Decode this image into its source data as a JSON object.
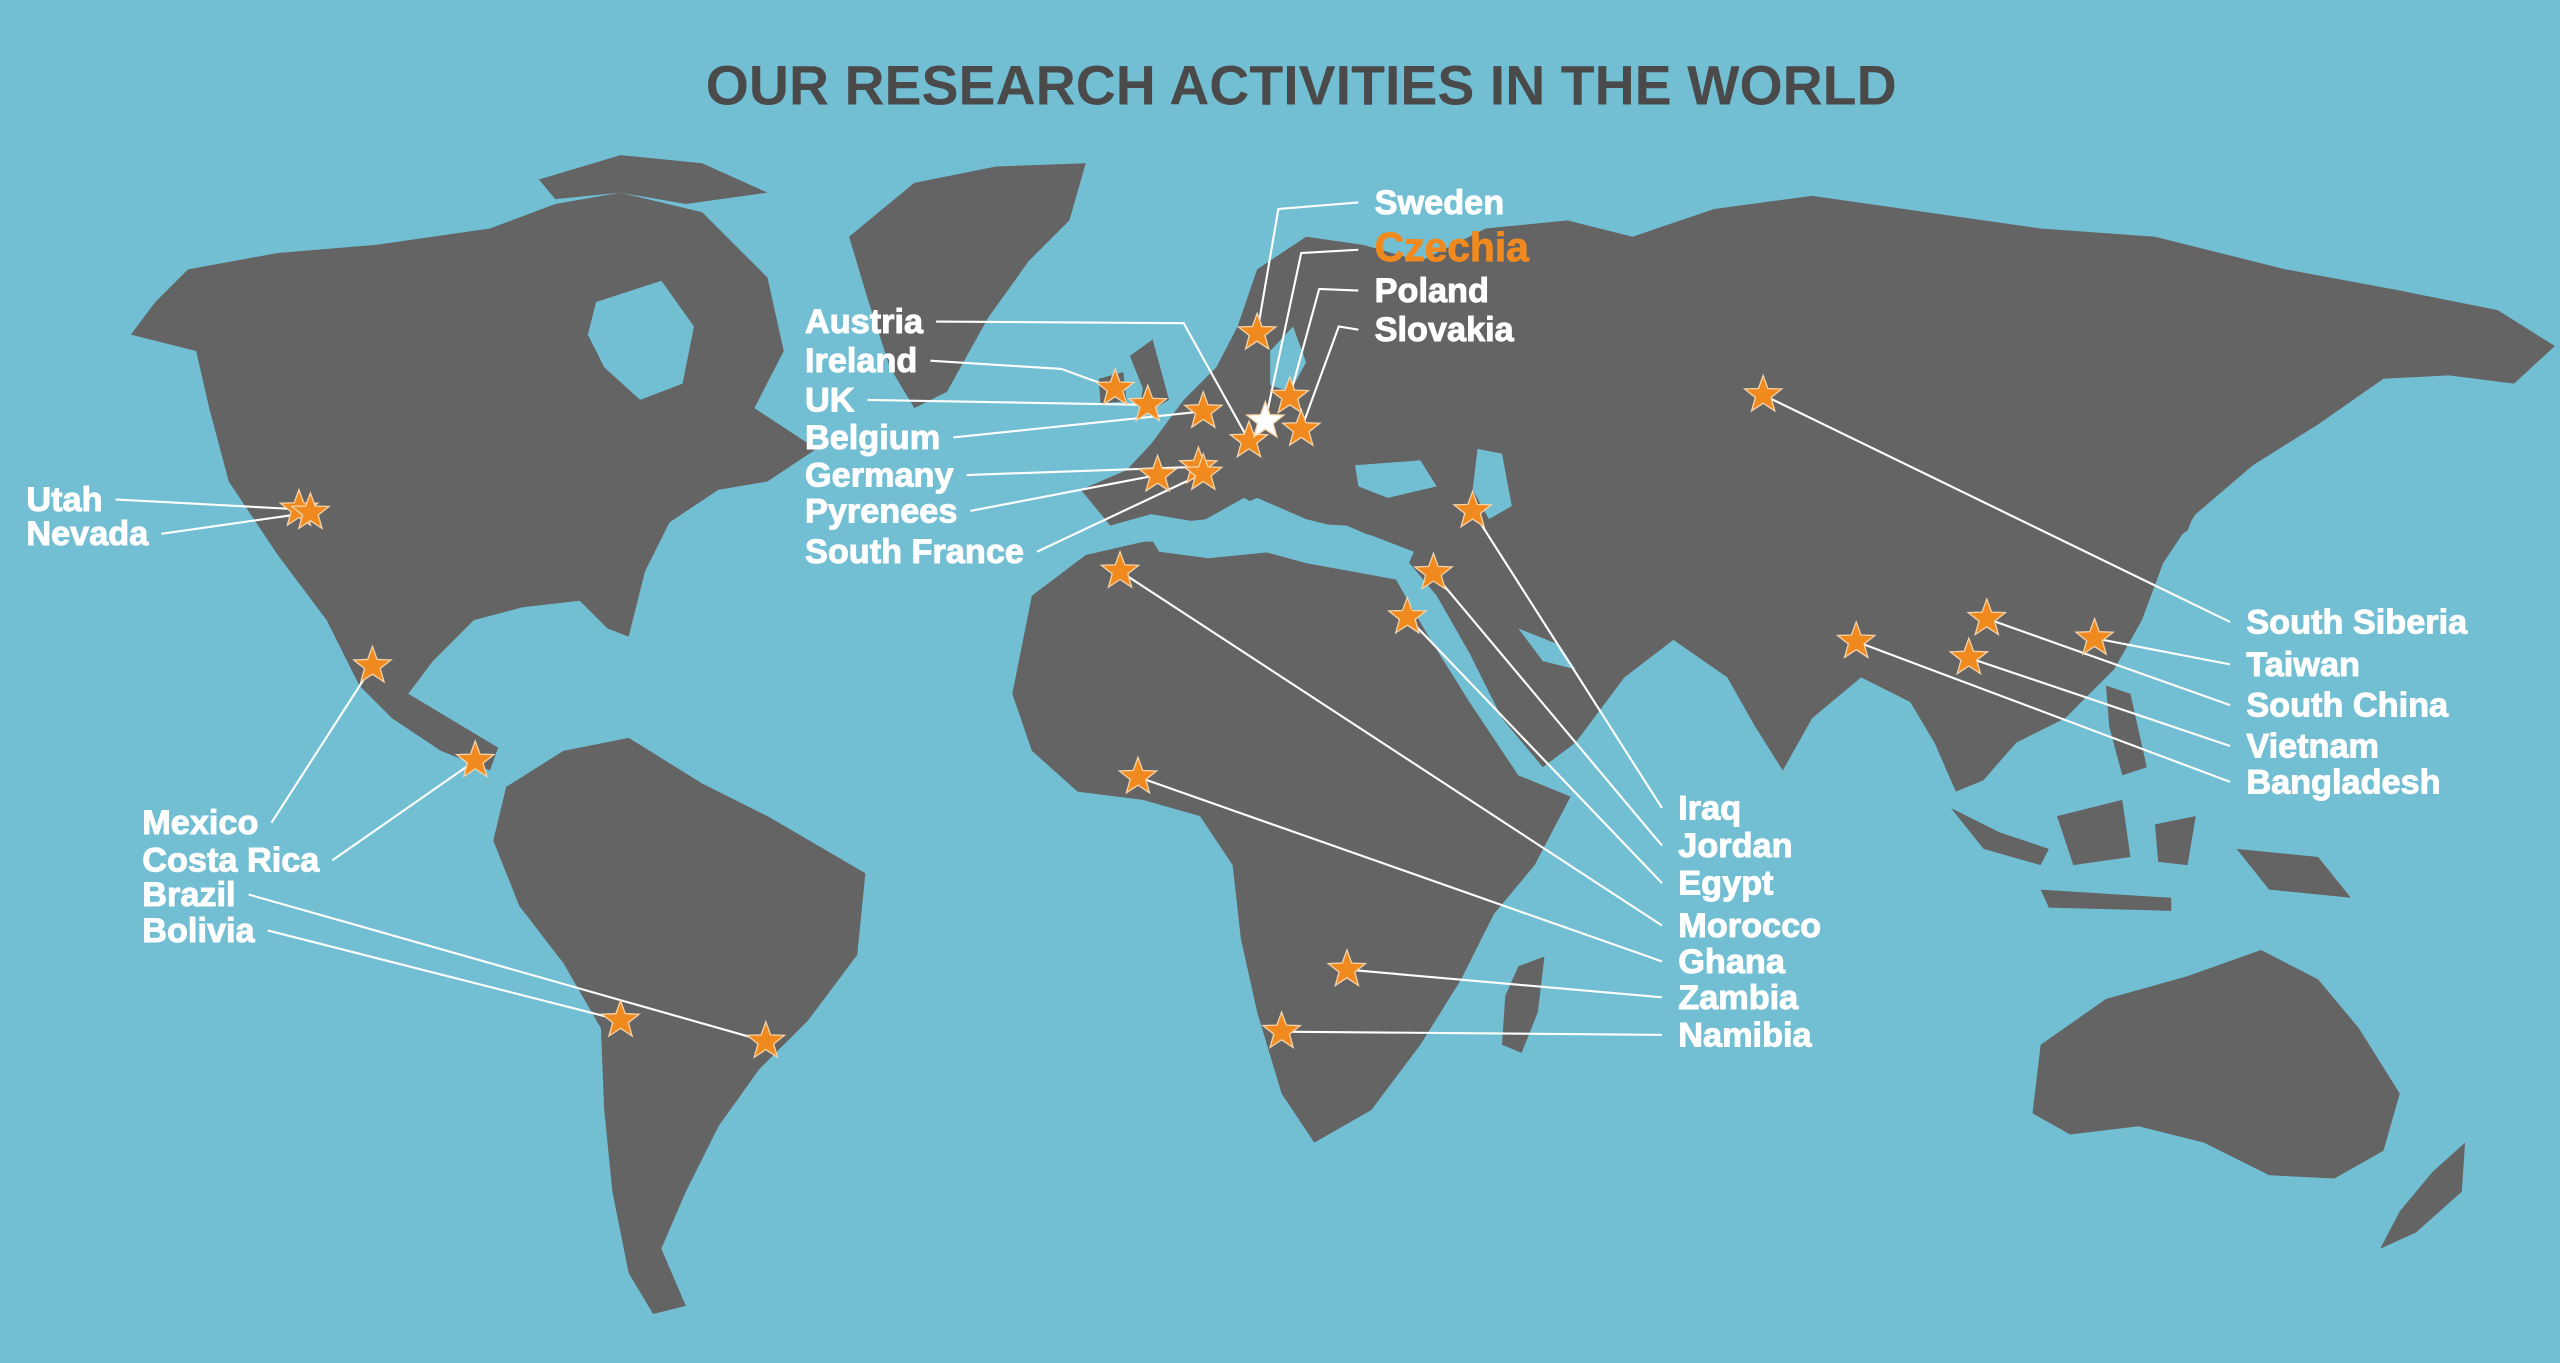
{
  "title": "OUR RESEARCH ACTIVITIES IN THE WORLD",
  "colors": {
    "ocean": "#72bfd4",
    "land": "#646464",
    "marker": "#f08a1e",
    "home_marker": "#ffffff",
    "home_label": "#f08a1e",
    "label": "#ffffff",
    "title": "#4a4a4a"
  },
  "marker_icon": "star-icon",
  "locations": [
    {
      "name": "Utah"
    },
    {
      "name": "Nevada"
    },
    {
      "name": "Mexico"
    },
    {
      "name": "Costa Rica"
    },
    {
      "name": "Brazil"
    },
    {
      "name": "Bolivia"
    },
    {
      "name": "Austria"
    },
    {
      "name": "Ireland"
    },
    {
      "name": "UK"
    },
    {
      "name": "Belgium"
    },
    {
      "name": "Germany"
    },
    {
      "name": "Pyrenees"
    },
    {
      "name": "South France"
    },
    {
      "name": "Sweden"
    },
    {
      "name": "Czechia",
      "home": true
    },
    {
      "name": "Poland"
    },
    {
      "name": "Slovakia"
    },
    {
      "name": "Iraq"
    },
    {
      "name": "Jordan"
    },
    {
      "name": "Egypt"
    },
    {
      "name": "Morocco"
    },
    {
      "name": "Ghana"
    },
    {
      "name": "Zambia"
    },
    {
      "name": "Namibia"
    },
    {
      "name": "South Siberia"
    },
    {
      "name": "Taiwan"
    },
    {
      "name": "South China"
    },
    {
      "name": "Vietnam"
    },
    {
      "name": "Bangladesh"
    }
  ]
}
